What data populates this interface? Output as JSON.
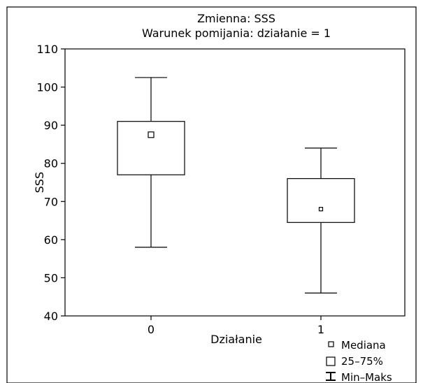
{
  "chart_data": {
    "type": "box",
    "title": "Zmienna: SSS",
    "subtitle": "Warunek pomijania: działanie = 1",
    "xlabel": "Działanie",
    "ylabel": "SSS",
    "ylim": [
      40,
      110
    ],
    "yticks": [
      40,
      50,
      60,
      70,
      80,
      90,
      100,
      110
    ],
    "categories": [
      "0",
      "1"
    ],
    "boxes": [
      {
        "category": "0",
        "min": 58,
        "q1": 77,
        "median": 87.5,
        "q3": 91,
        "max": 102.5
      },
      {
        "category": "1",
        "min": 46,
        "q1": 64.5,
        "median": 68,
        "q3": 76,
        "max": 84
      }
    ],
    "grid": false,
    "legend_position": "bottom-right",
    "legend": {
      "median_label": "Mediana",
      "box_label": "25–75%",
      "whisker_label": "Min–Maks"
    }
  }
}
